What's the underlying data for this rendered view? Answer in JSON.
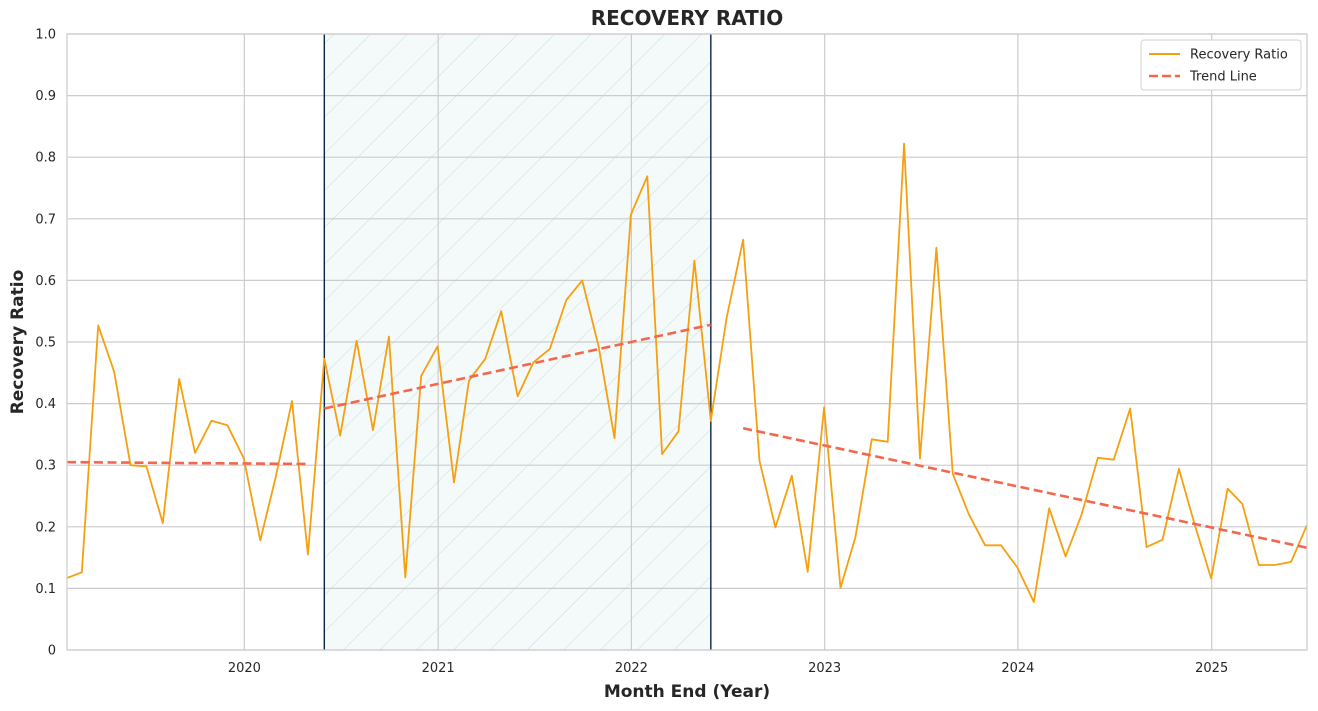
{
  "chart_data": {
    "type": "line",
    "title": "RECOVERY RATIO",
    "xlabel": "Month End (Year)",
    "ylabel": "Recovery Ratio",
    "x_tick_labels": [
      "2020",
      "2021",
      "2022",
      "2023",
      "2024",
      "2025"
    ],
    "y_tick_labels": [
      "0",
      "0.1",
      "0.2",
      "0.3",
      "0.4",
      "0.5",
      "0.6",
      "0.7",
      "0.8",
      "0.9",
      "1.0"
    ],
    "xlim": [
      "2019-01-31",
      "2025-06-30"
    ],
    "ylim": [
      0,
      1.0
    ],
    "grid": true,
    "legend_position": "top-right",
    "shaded_period": {
      "start": "2020-05-31",
      "end": "2022-05-31",
      "fill": "#e6f3f1",
      "hatch": true,
      "edge_color": "#0b2545"
    },
    "series": [
      {
        "name": "Recovery Ratio",
        "color": "#f5a00f",
        "style": "solid",
        "points": [
          [
            "2019-01-31",
            0.117
          ],
          [
            "2019-02-28",
            0.126
          ],
          [
            "2019-03-31",
            0.527
          ],
          [
            "2019-04-30",
            0.452
          ],
          [
            "2019-05-31",
            0.3
          ],
          [
            "2019-06-30",
            0.298
          ],
          [
            "2019-07-31",
            0.206
          ],
          [
            "2019-08-31",
            0.44
          ],
          [
            "2019-09-30",
            0.32
          ],
          [
            "2019-10-31",
            0.372
          ],
          [
            "2019-11-30",
            0.365
          ],
          [
            "2019-12-31",
            0.311
          ],
          [
            "2020-01-31",
            0.178
          ],
          [
            "2020-02-29",
            0.28
          ],
          [
            "2020-03-31",
            0.404
          ],
          [
            "2020-04-30",
            0.155
          ],
          [
            "2020-05-31",
            0.473
          ],
          [
            "2020-06-30",
            0.348
          ],
          [
            "2020-07-31",
            0.502
          ],
          [
            "2020-08-31",
            0.357
          ],
          [
            "2020-09-30",
            0.509
          ],
          [
            "2020-10-31",
            0.118
          ],
          [
            "2020-11-30",
            0.445
          ],
          [
            "2020-12-31",
            0.493
          ],
          [
            "2021-01-31",
            0.272
          ],
          [
            "2021-02-28",
            0.437
          ],
          [
            "2021-03-31",
            0.473
          ],
          [
            "2021-04-30",
            0.55
          ],
          [
            "2021-05-31",
            0.412
          ],
          [
            "2021-06-30",
            0.467
          ],
          [
            "2021-07-31",
            0.489
          ],
          [
            "2021-08-31",
            0.568
          ],
          [
            "2021-09-30",
            0.6
          ],
          [
            "2021-10-31",
            0.493
          ],
          [
            "2021-11-30",
            0.344
          ],
          [
            "2021-12-31",
            0.707
          ],
          [
            "2022-01-31",
            0.769
          ],
          [
            "2022-02-28",
            0.318
          ],
          [
            "2022-03-31",
            0.355
          ],
          [
            "2022-04-30",
            0.632
          ],
          [
            "2022-05-31",
            0.372
          ],
          [
            "2022-06-30",
            0.54
          ],
          [
            "2022-07-31",
            0.666
          ],
          [
            "2022-08-31",
            0.307
          ],
          [
            "2022-09-30",
            0.199
          ],
          [
            "2022-10-31",
            0.283
          ],
          [
            "2022-11-30",
            0.127
          ],
          [
            "2022-12-31",
            0.394
          ],
          [
            "2023-01-31",
            0.101
          ],
          [
            "2023-02-28",
            0.183
          ],
          [
            "2023-03-31",
            0.342
          ],
          [
            "2023-04-30",
            0.338
          ],
          [
            "2023-05-31",
            0.822
          ],
          [
            "2023-06-30",
            0.311
          ],
          [
            "2023-07-31",
            0.653
          ],
          [
            "2023-08-31",
            0.286
          ],
          [
            "2023-09-30",
            0.221
          ],
          [
            "2023-10-31",
            0.17
          ],
          [
            "2023-11-30",
            0.17
          ],
          [
            "2023-12-31",
            0.134
          ],
          [
            "2024-01-31",
            0.078
          ],
          [
            "2024-02-29",
            0.23
          ],
          [
            "2024-03-31",
            0.152
          ],
          [
            "2024-04-30",
            0.219
          ],
          [
            "2024-05-31",
            0.312
          ],
          [
            "2024-06-30",
            0.309
          ],
          [
            "2024-07-31",
            0.392
          ],
          [
            "2024-08-31",
            0.167
          ],
          [
            "2024-09-30",
            0.179
          ],
          [
            "2024-10-31",
            0.294
          ],
          [
            "2024-11-30",
            0.203
          ],
          [
            "2024-12-31",
            0.116
          ],
          [
            "2025-01-31",
            0.262
          ],
          [
            "2025-02-28",
            0.237
          ],
          [
            "2025-03-31",
            0.138
          ],
          [
            "2025-04-30",
            0.138
          ],
          [
            "2025-05-31",
            0.143
          ],
          [
            "2025-06-30",
            0.203
          ]
        ]
      },
      {
        "name": "Trend Line",
        "color": "#f4674d",
        "style": "dashed",
        "segments": [
          [
            [
              "2019-01-31",
              0.305
            ],
            [
              "2020-04-30",
              0.302
            ]
          ],
          [
            [
              "2020-05-31",
              0.392
            ],
            [
              "2022-05-31",
              0.528
            ]
          ],
          [
            [
              "2022-07-31",
              0.36
            ],
            [
              "2025-06-30",
              0.166
            ]
          ]
        ]
      }
    ]
  }
}
